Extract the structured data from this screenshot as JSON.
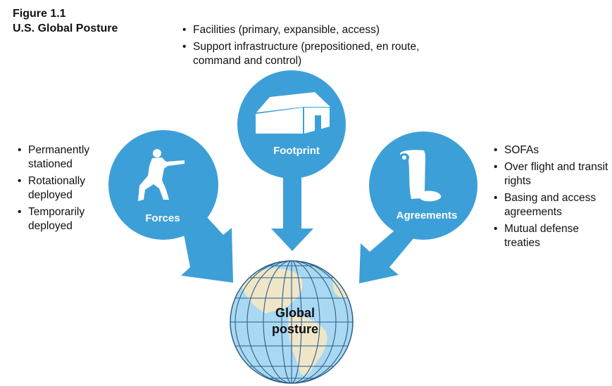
{
  "figure": {
    "number": "Figure 1.1",
    "title": "U.S. Global Posture"
  },
  "nodes": {
    "footprint": {
      "label": "Footprint",
      "icon": "house-icon",
      "bullets": [
        "Facilities (primary, expansible, access)",
        "Support infrastructure (prepositioned, en route, command and control)"
      ]
    },
    "forces": {
      "label": "Forces",
      "icon": "soldier-icon",
      "bullets": [
        "Permanently stationed",
        "Rotationally deployed",
        "Temporarily deployed"
      ]
    },
    "agreements": {
      "label": "Agreements",
      "icon": "scroll-icon",
      "bullets": [
        "SOFAs",
        "Over flight and transit rights",
        "Basing and access agreements",
        "Mutual defense treaties"
      ]
    },
    "global": {
      "label_line1": "Global",
      "label_line2": "posture",
      "icon": "globe-icon"
    }
  },
  "colors": {
    "circle": "#3d9fd8",
    "ocean": "#a9d8f2",
    "land": "#efe6c8",
    "grid": "#2e5f88"
  }
}
